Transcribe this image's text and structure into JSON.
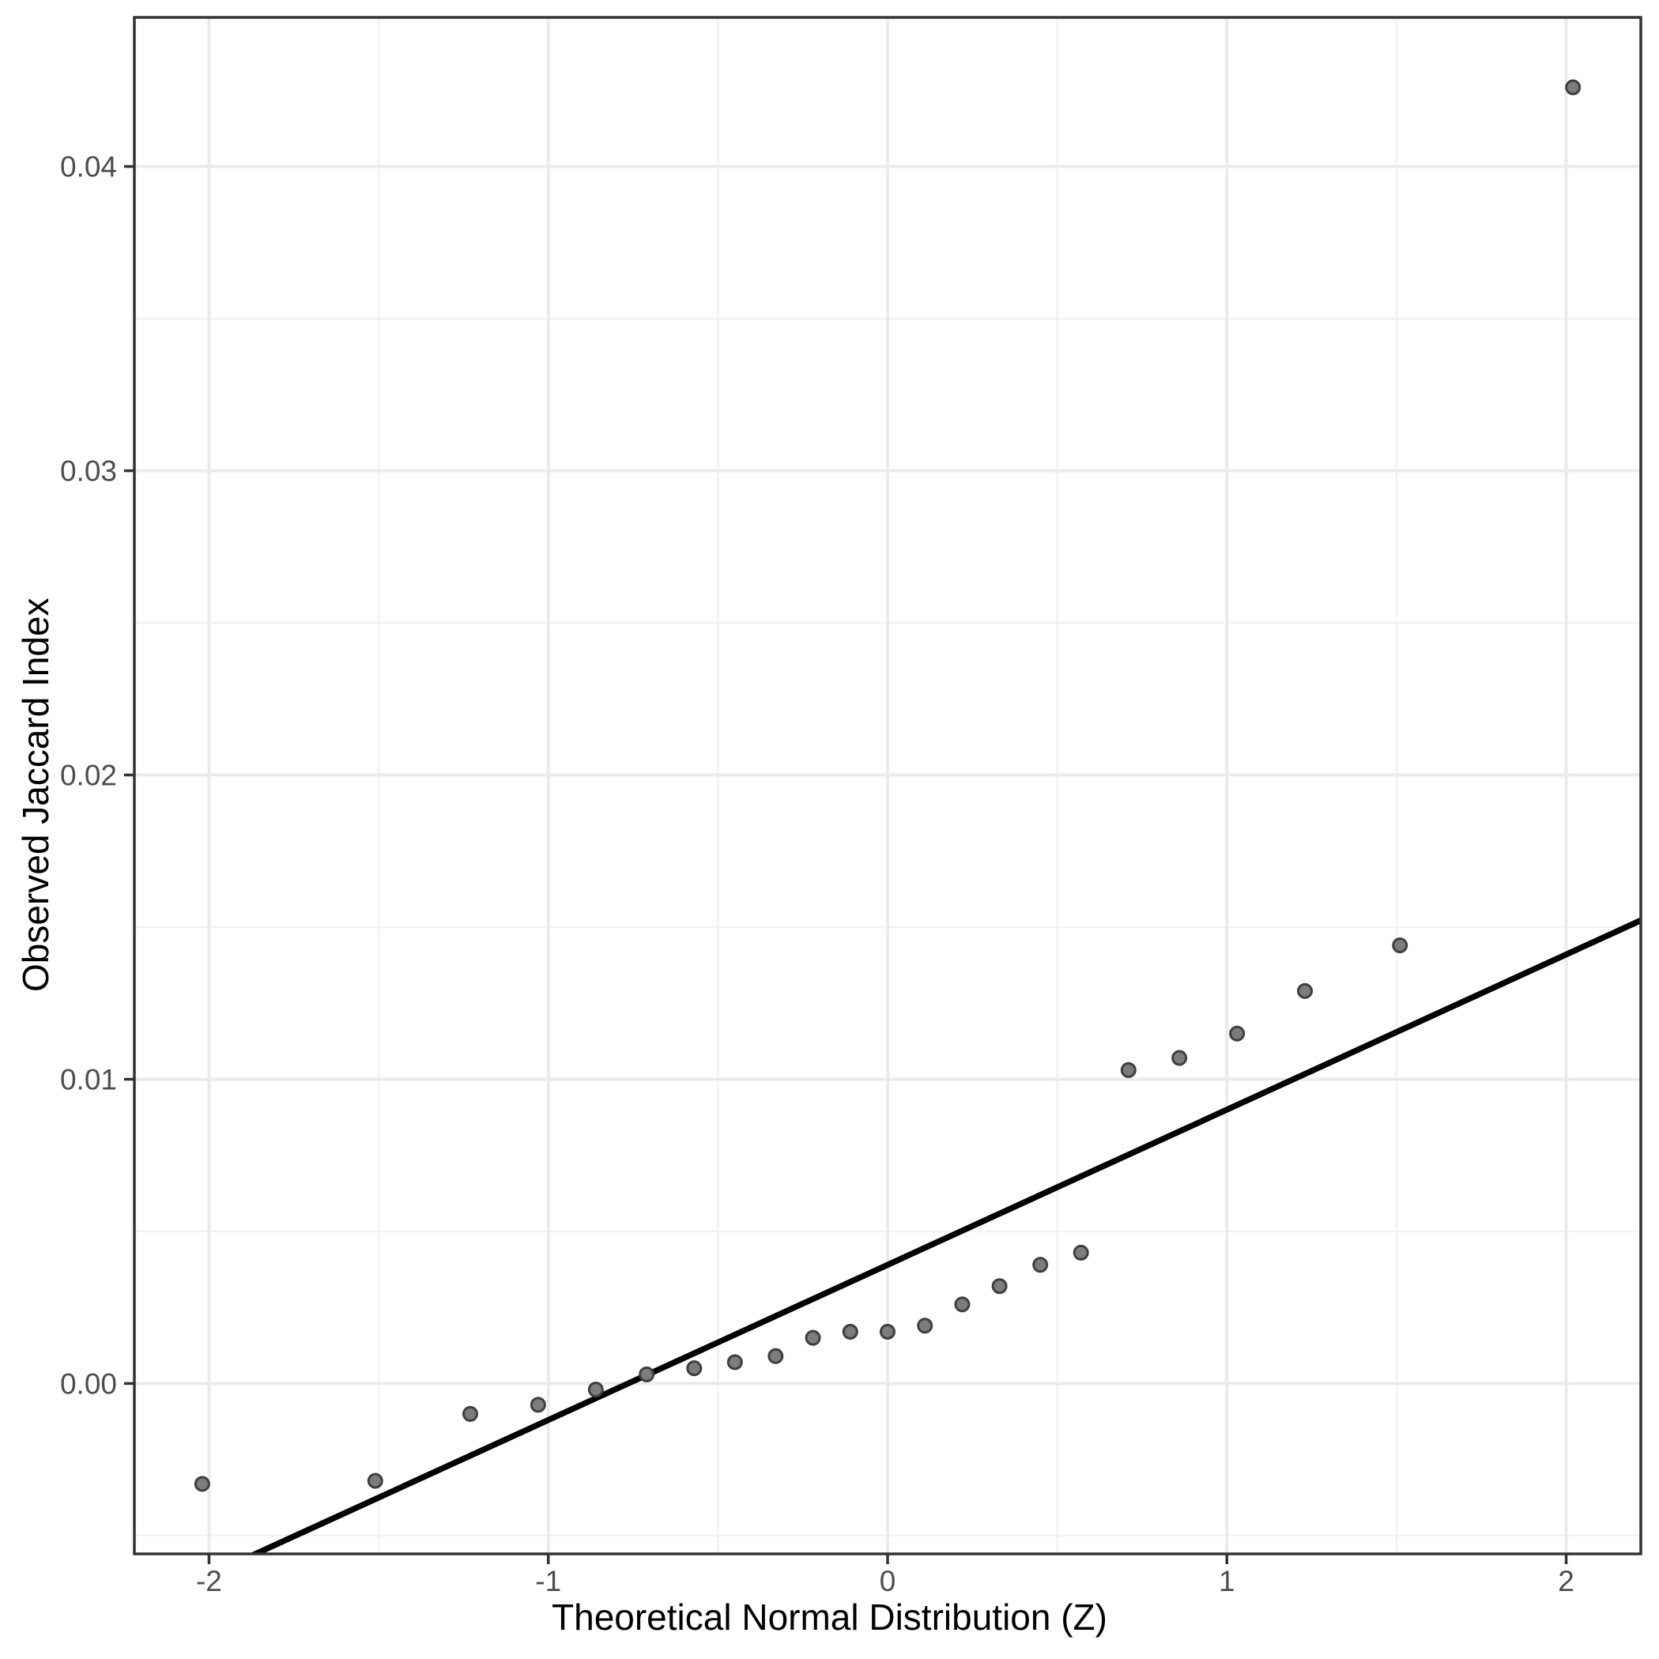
{
  "chart_data": {
    "type": "scatter",
    "title": "",
    "xlabel": "Theoretical Normal Distribution (Z)",
    "ylabel": "Observed Jaccard Index",
    "xlim": [
      -2.22,
      2.22
    ],
    "ylim": [
      -0.0056,
      0.0449
    ],
    "x_ticks": [
      -2,
      -1,
      0,
      1,
      2
    ],
    "x_tick_labels": [
      "-2",
      "-1",
      "0",
      "1",
      "2"
    ],
    "x_minor_gridlines": [
      -1.5,
      -0.5,
      0.5,
      1.5
    ],
    "y_ticks": [
      0.0,
      0.01,
      0.02,
      0.03,
      0.04
    ],
    "y_tick_labels": [
      "0.00",
      "0.01",
      "0.02",
      "0.03",
      "0.04"
    ],
    "y_minor_gridlines": [
      -0.005,
      0.005,
      0.015,
      0.025,
      0.035
    ],
    "grid": "major-and-minor",
    "legend": "none",
    "series": [
      {
        "name": "observed-quantiles",
        "type": "scatter",
        "points": [
          [
            -2.02,
            -0.0033
          ],
          [
            -1.51,
            -0.0032
          ],
          [
            -1.23,
            -0.001
          ],
          [
            -1.03,
            -0.0007
          ],
          [
            -0.86,
            -0.0002
          ],
          [
            -0.71,
            0.0003
          ],
          [
            -0.57,
            0.0005
          ],
          [
            -0.45,
            0.0007
          ],
          [
            -0.33,
            0.0009
          ],
          [
            -0.22,
            0.0015
          ],
          [
            -0.11,
            0.0017
          ],
          [
            0.0,
            0.0017
          ],
          [
            0.11,
            0.0019
          ],
          [
            0.22,
            0.0026
          ],
          [
            0.33,
            0.0032
          ],
          [
            0.45,
            0.0039
          ],
          [
            0.57,
            0.0043
          ],
          [
            0.71,
            0.0103
          ],
          [
            0.86,
            0.0107
          ],
          [
            1.03,
            0.0115
          ],
          [
            1.23,
            0.0129
          ],
          [
            1.51,
            0.0144
          ],
          [
            2.02,
            0.0426
          ]
        ]
      },
      {
        "name": "qq-reference-line",
        "type": "line",
        "slope": 0.0051,
        "intercept": 0.0039
      }
    ],
    "colors": {
      "point_fill": "#7c7c7c",
      "point_stroke": "#3f3f3f",
      "reference_line": "#000000",
      "grid_major": "#ebebeb",
      "grid_minor": "#f2f2f2",
      "panel_border": "#333333",
      "tick_mark": "#333333",
      "tick_label": "#4d4d4d",
      "axis_title": "#000000",
      "background": "#ffffff"
    }
  }
}
